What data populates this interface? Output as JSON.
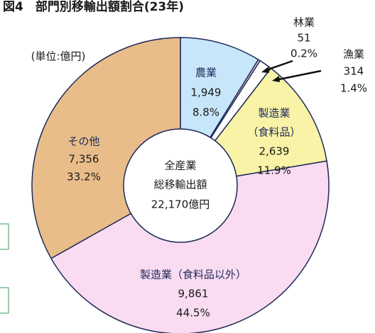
{
  "chart_data": {
    "type": "donut",
    "title": "図4　部門別移輸出額割合(23年)",
    "unit_note": "(単位:億円)",
    "center_label": [
      "全産業",
      "総移輸出額"
    ],
    "total": {
      "value": 22170,
      "label": "22,170億円"
    },
    "categories": [
      [
        "農業"
      ],
      [
        "林業"
      ],
      [
        "漁業"
      ],
      [
        "製造業",
        "（食料品）"
      ],
      [
        "製造業（食料品以外）"
      ],
      [
        "その他"
      ]
    ],
    "values": [
      1949,
      51,
      314,
      2639,
      9861,
      7356
    ],
    "value_labels": [
      "1,949",
      "51",
      "314",
      "2,639",
      "9,861",
      "7,356"
    ],
    "percents": [
      8.8,
      0.2,
      1.4,
      11.9,
      44.5,
      33.2
    ],
    "percent_labels": [
      "8.8%",
      "0.2%",
      "1.4%",
      "11.9%",
      "44.5%",
      "33.2%"
    ],
    "colors": [
      "#c8e6fa",
      "#f9d7c6",
      "#ffffff",
      "#f8f3a6",
      "#f9dcf1",
      "#e8bd8a"
    ]
  }
}
